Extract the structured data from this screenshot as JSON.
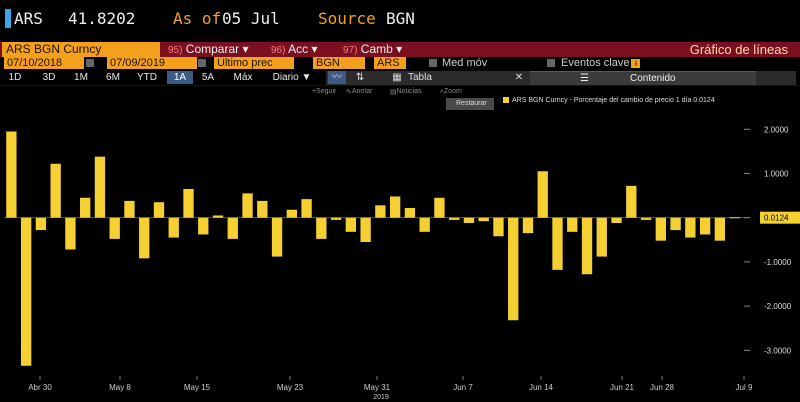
{
  "header": {
    "ticker": "ARS",
    "price": "41.8202",
    "asof_label": "As of",
    "asof_date": "05 Jul",
    "source_label": "Source",
    "source_value": "BGN"
  },
  "function_bar": {
    "security": "ARS BGN Curncy",
    "menus": [
      {
        "num": "95)",
        "label": "Comparar"
      },
      {
        "num": "96)",
        "label": "Acc"
      },
      {
        "num": "97)",
        "label": "Camb"
      }
    ],
    "chart_title": "Gráfico de líneas"
  },
  "inputs": {
    "start_date": "07/10/2018",
    "end_date": "07/09/2019",
    "field": "Último prec",
    "source": "BGN",
    "currency": "ARS",
    "moving_avg": "Med móv",
    "events": "Eventos clave"
  },
  "ranges": [
    "1D",
    "3D",
    "1M",
    "6M",
    "YTD",
    "1A",
    "5A",
    "Máx"
  ],
  "active_range": "1A",
  "period": "Diario",
  "toolbar": {
    "table": "Tabla",
    "content": "Contenido"
  },
  "subtoolbar": [
    "Seguir",
    "Anotar",
    "Noticias",
    "Zoom"
  ],
  "restore_label": "Restaurar",
  "legend": "ARS BGN Curncy - Porcentaje del cambio de precio 1 día 0.0124",
  "last_value_label": "0.0124",
  "colors": {
    "bar": "#f5d033",
    "accent": "#f3a01d",
    "function_bar": "#7c0f1f"
  },
  "chart_data": {
    "type": "bar",
    "ylim": [
      -3.4,
      2.3
    ],
    "yticks": [
      2,
      1,
      0,
      -1,
      -2,
      -3
    ],
    "ytick_labels": [
      "2.0000",
      "1.0000",
      "0.0124",
      "-1.0000",
      "-2.0000",
      "-3.0000"
    ],
    "x_labels": [
      "Abr 30",
      "May 8",
      "May 15",
      "May 23",
      "May 31",
      "Jun 7",
      "Jun 14",
      "Jun 21",
      "Jun 28",
      "Jul 9"
    ],
    "x_year": "2019",
    "values": [
      1.95,
      -3.35,
      -0.28,
      1.22,
      -0.72,
      0.45,
      1.38,
      -0.48,
      0.38,
      -0.92,
      0.35,
      -0.45,
      0.65,
      -0.38,
      0.05,
      -0.48,
      0.55,
      0.38,
      -0.88,
      0.18,
      0.42,
      -0.48,
      -0.05,
      -0.32,
      -0.55,
      0.28,
      0.48,
      0.22,
      -0.32,
      0.45,
      -0.05,
      -0.12,
      -0.08,
      -0.42,
      -2.32,
      -0.35,
      1.05,
      -1.18,
      -0.32,
      -1.28,
      -0.88,
      -0.12,
      0.72,
      -0.05,
      -0.52,
      -0.28,
      -0.45,
      -0.38,
      -0.52,
      0.01
    ]
  }
}
